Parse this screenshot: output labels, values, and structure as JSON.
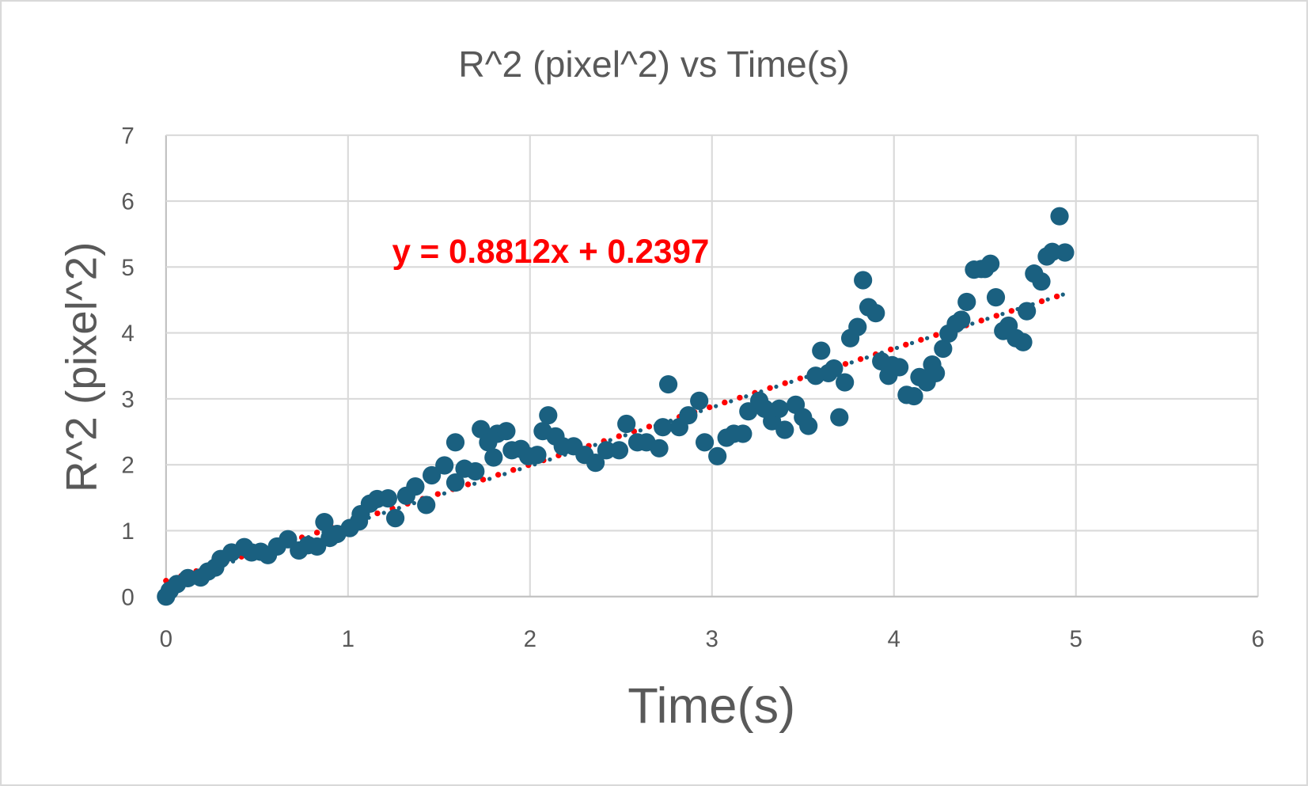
{
  "chart_data": {
    "type": "scatter",
    "title": "R^2 (pixel^2) vs Time(s)",
    "xlabel": "Time(s)",
    "ylabel": "R^2 (pixel^2)",
    "xlim": [
      0,
      6
    ],
    "ylim": [
      0,
      7
    ],
    "xticks": [
      "0",
      "1",
      "2",
      "3",
      "4",
      "5",
      "6"
    ],
    "yticks": [
      "0",
      "1",
      "2",
      "3",
      "4",
      "5",
      "6",
      "7"
    ],
    "grid": true,
    "legend": "none",
    "marker_color": "#1a6080",
    "trendline": {
      "type": "linear",
      "slope": 0.8812,
      "intercept": 0.2397,
      "color": "#ff0000",
      "style": "dotted",
      "equation_label": "y = 0.8812x + 0.2397"
    },
    "points": [
      [
        0,
        0
      ],
      [
        0.02,
        0.09
      ],
      [
        0.06,
        0.19
      ],
      [
        0.12,
        0.28
      ],
      [
        0.19,
        0.29
      ],
      [
        0.23,
        0.38
      ],
      [
        0.27,
        0.44
      ],
      [
        0.3,
        0.57
      ],
      [
        0.36,
        0.67
      ],
      [
        0.43,
        0.75
      ],
      [
        0.47,
        0.67
      ],
      [
        0.52,
        0.68
      ],
      [
        0.56,
        0.63
      ],
      [
        0.61,
        0.76
      ],
      [
        0.67,
        0.87
      ],
      [
        0.73,
        0.7
      ],
      [
        0.78,
        0.78
      ],
      [
        0.83,
        0.76
      ],
      [
        0.87,
        1.13
      ],
      [
        0.9,
        0.89
      ],
      [
        0.94,
        0.95
      ],
      [
        1.01,
        1.04
      ],
      [
        1.06,
        1.14
      ],
      [
        1.07,
        1.25
      ],
      [
        1.12,
        1.41
      ],
      [
        1.16,
        1.48
      ],
      [
        1.22,
        1.49
      ],
      [
        1.26,
        1.19
      ],
      [
        1.32,
        1.53
      ],
      [
        1.37,
        1.67
      ],
      [
        1.43,
        1.39
      ],
      [
        1.46,
        1.84
      ],
      [
        1.53,
        1.99
      ],
      [
        1.59,
        1.73
      ],
      [
        1.59,
        2.34
      ],
      [
        1.64,
        1.94
      ],
      [
        1.7,
        1.9
      ],
      [
        1.73,
        2.54
      ],
      [
        1.77,
        2.34
      ],
      [
        1.8,
        2.11
      ],
      [
        1.82,
        2.47
      ],
      [
        1.87,
        2.51
      ],
      [
        1.9,
        2.22
      ],
      [
        1.95,
        2.24
      ],
      [
        1.99,
        2.13
      ],
      [
        2.04,
        2.15
      ],
      [
        2.07,
        2.51
      ],
      [
        2.1,
        2.75
      ],
      [
        2.14,
        2.43
      ],
      [
        2.18,
        2.28
      ],
      [
        2.24,
        2.28
      ],
      [
        2.3,
        2.15
      ],
      [
        2.36,
        2.03
      ],
      [
        2.42,
        2.22
      ],
      [
        2.49,
        2.22
      ],
      [
        2.53,
        2.62
      ],
      [
        2.59,
        2.34
      ],
      [
        2.64,
        2.34
      ],
      [
        2.71,
        2.25
      ],
      [
        2.73,
        2.57
      ],
      [
        2.76,
        3.22
      ],
      [
        2.82,
        2.57
      ],
      [
        2.87,
        2.75
      ],
      [
        2.93,
        2.97
      ],
      [
        2.96,
        2.34
      ],
      [
        3.03,
        2.13
      ],
      [
        3.08,
        2.41
      ],
      [
        3.12,
        2.47
      ],
      [
        3.17,
        2.47
      ],
      [
        3.2,
        2.81
      ],
      [
        3.26,
        2.97
      ],
      [
        3.29,
        2.85
      ],
      [
        3.33,
        2.66
      ],
      [
        3.37,
        2.85
      ],
      [
        3.4,
        2.53
      ],
      [
        3.46,
        2.91
      ],
      [
        3.5,
        2.72
      ],
      [
        3.53,
        2.59
      ],
      [
        3.57,
        3.35
      ],
      [
        3.6,
        3.73
      ],
      [
        3.64,
        3.39
      ],
      [
        3.67,
        3.46
      ],
      [
        3.7,
        2.72
      ],
      [
        3.73,
        3.25
      ],
      [
        3.76,
        3.92
      ],
      [
        3.8,
        4.09
      ],
      [
        3.83,
        4.8
      ],
      [
        3.86,
        4.39
      ],
      [
        3.9,
        4.3
      ],
      [
        3.93,
        3.57
      ],
      [
        3.97,
        3.35
      ],
      [
        3.99,
        3.51
      ],
      [
        4.03,
        3.48
      ],
      [
        4.07,
        3.06
      ],
      [
        4.11,
        3.04
      ],
      [
        4.14,
        3.33
      ],
      [
        4.18,
        3.25
      ],
      [
        4.21,
        3.52
      ],
      [
        4.23,
        3.39
      ],
      [
        4.27,
        3.76
      ],
      [
        4.3,
        3.99
      ],
      [
        4.34,
        4.14
      ],
      [
        4.37,
        4.2
      ],
      [
        4.4,
        4.47
      ],
      [
        4.44,
        4.96
      ],
      [
        4.48,
        4.97
      ],
      [
        4.5,
        4.97
      ],
      [
        4.53,
        5.05
      ],
      [
        4.56,
        4.54
      ],
      [
        4.6,
        4.03
      ],
      [
        4.63,
        4.11
      ],
      [
        4.67,
        3.92
      ],
      [
        4.71,
        3.86
      ],
      [
        4.73,
        4.33
      ],
      [
        4.77,
        4.9
      ],
      [
        4.81,
        4.78
      ],
      [
        4.84,
        5.16
      ],
      [
        4.87,
        5.23
      ],
      [
        4.91,
        5.77
      ],
      [
        4.94,
        5.22
      ]
    ]
  }
}
